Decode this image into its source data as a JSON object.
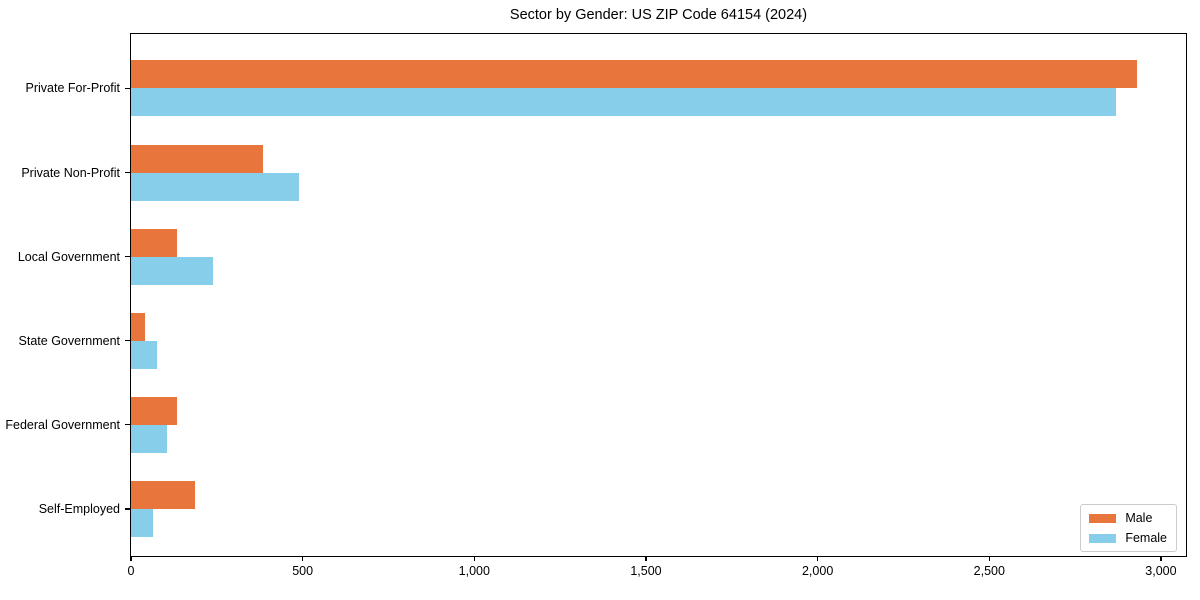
{
  "title": "Sector by Gender: US ZIP Code 64154 (2024)",
  "chart_data": {
    "type": "bar",
    "orientation": "horizontal",
    "title": "Sector by Gender: US ZIP Code 64154 (2024)",
    "categories": [
      "Private For-Profit",
      "Private Non-Profit",
      "Local Government",
      "State Government",
      "Federal Government",
      "Self-Employed"
    ],
    "series": [
      {
        "name": "Male",
        "color": "#e8763c",
        "values": [
          2930,
          385,
          135,
          40,
          135,
          185
        ]
      },
      {
        "name": "Female",
        "color": "#87ceeb",
        "values": [
          2870,
          490,
          240,
          75,
          105,
          65
        ]
      }
    ],
    "xlabel": "",
    "ylabel": "",
    "xlim": [
      0,
      3073
    ],
    "xticks": [
      0,
      500,
      1000,
      1500,
      2000,
      2500,
      3000
    ],
    "xtick_labels": [
      "0",
      "500",
      "1,000",
      "1,500",
      "2,000",
      "2,500",
      "3,000"
    ],
    "grid": false,
    "legend_position": "lower right",
    "legend_labels": [
      "Male",
      "Female"
    ],
    "bar_colors": {
      "male": "#e8763c",
      "female": "#87ceeb"
    },
    "axis_color": "#000000",
    "background_color": "#ffffff"
  }
}
